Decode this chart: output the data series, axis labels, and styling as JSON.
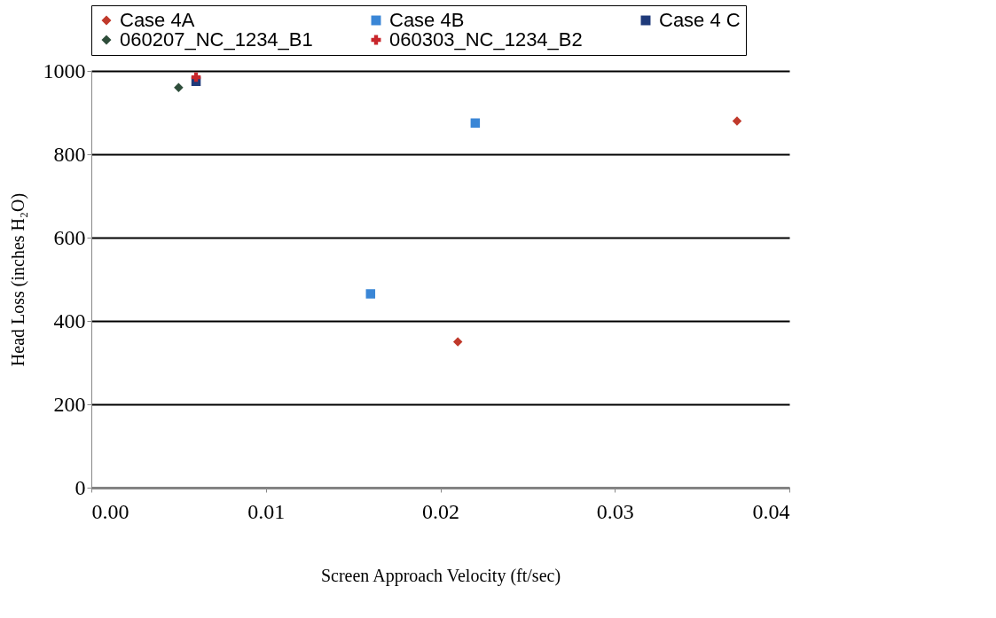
{
  "chart_data": {
    "type": "scatter",
    "xlabel": "Screen Approach Velocity (ft/sec)",
    "ylabel": "Head Loss (inches H₂O)",
    "xlim": [
      0,
      0.04
    ],
    "xticks": [
      {
        "value": 0,
        "label": "0.00"
      },
      {
        "value": 0.01,
        "label": "0.01"
      },
      {
        "value": 0.02,
        "label": "0.02"
      },
      {
        "value": 0.03,
        "label": "0.03"
      },
      {
        "value": 0.04,
        "label": "0.04"
      }
    ],
    "ylim": [
      0,
      1000
    ],
    "yticks": [
      0,
      200,
      400,
      600,
      800,
      1000
    ],
    "grid": "y",
    "legend": "top",
    "series": [
      {
        "name": "Case 4A",
        "color": "#c0392b",
        "marker": "diamond",
        "x": [
          0.021,
          0.037
        ],
        "values": [
          350,
          880
        ]
      },
      {
        "name": "Case 4B",
        "color": "#3a86d6",
        "marker": "square",
        "x": [
          0.016,
          0.022
        ],
        "values": [
          465,
          875
        ]
      },
      {
        "name": "Case 4 C",
        "color": "#1f3a7a",
        "marker": "square",
        "x": [
          0.006
        ],
        "values": [
          975
        ]
      },
      {
        "name": "060207_NC_1234_B1",
        "color": "#2e4d3a",
        "marker": "diamond",
        "x": [
          0.005
        ],
        "values": [
          960
        ]
      },
      {
        "name": "060303_NC_1234_B2",
        "color": "#c8262b",
        "marker": "cross",
        "x": [
          0.006
        ],
        "values": [
          985
        ]
      }
    ]
  }
}
